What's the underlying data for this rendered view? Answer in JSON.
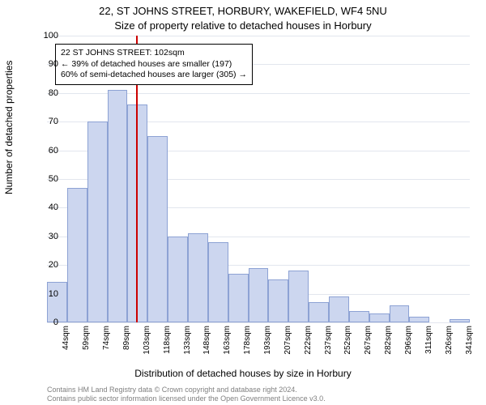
{
  "title_main": "22, ST JOHNS STREET, HORBURY, WAKEFIELD, WF4 5NU",
  "title_sub": "Size of property relative to detached houses in Horbury",
  "y_axis_title": "Number of detached properties",
  "x_axis_title": "Distribution of detached houses by size in Horbury",
  "chart": {
    "type": "histogram",
    "ylim": [
      0,
      100
    ],
    "ytick_step": 10,
    "background_color": "#ffffff",
    "grid_color": "#e2e6ee",
    "bar_fill": "#ccd6ef",
    "bar_border": "#8da2d4",
    "bar_width_ratio": 1.0,
    "categories": [
      "44sqm",
      "59sqm",
      "74sqm",
      "89sqm",
      "103sqm",
      "118sqm",
      "133sqm",
      "148sqm",
      "163sqm",
      "178sqm",
      "193sqm",
      "207sqm",
      "222sqm",
      "237sqm",
      "252sqm",
      "267sqm",
      "282sqm",
      "296sqm",
      "311sqm",
      "326sqm",
      "341sqm"
    ],
    "values": [
      14,
      47,
      70,
      81,
      76,
      65,
      30,
      31,
      28,
      17,
      19,
      15,
      18,
      7,
      9,
      4,
      3,
      6,
      2,
      0,
      1
    ],
    "reference_line": {
      "x_value": 102,
      "color": "#cc0000",
      "width": 2
    },
    "annotation": {
      "line1": "22 ST JOHNS STREET: 102sqm",
      "line2": "← 39% of detached houses are smaller (197)",
      "line3": "60% of semi-detached houses are larger (305) →",
      "border_color": "#000000",
      "background_color": "#ffffff",
      "fontsize": 10.5
    },
    "label_fontsize": 11,
    "tick_fontsize": 10
  },
  "footer1": "Contains HM Land Registry data © Crown copyright and database right 2024.",
  "footer2": "Contains public sector information licensed under the Open Government Licence v3.0."
}
